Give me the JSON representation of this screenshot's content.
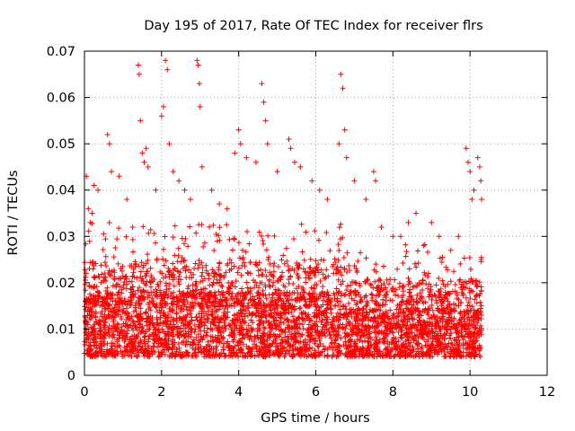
{
  "chart_data": {
    "type": "scatter",
    "title": "Day 195 of 2017, Rate Of TEC Index for receiver flrs",
    "xlabel": "GPS time / hours",
    "ylabel": "ROTI / TECUs",
    "xlim": [
      0,
      12
    ],
    "ylim": [
      0,
      0.07
    ],
    "x_ticks": [
      "0",
      "2",
      "4",
      "6",
      "8",
      "10",
      "12"
    ],
    "y_ticks": [
      "0",
      "0.01",
      "0.02",
      "0.03",
      "0.04",
      "0.05",
      "0.06",
      "0.07"
    ],
    "grid": true,
    "marker": "plus",
    "color": "#ff0000",
    "data_extent": {
      "x_start": 0.0,
      "x_end": 10.3
    },
    "summary": "Dense cloud of ROTI samples; bulk between 0.004 and 0.03 TECU/min, peaks up to ~0.068 near 2.1 h and 2.9 h",
    "series": [
      {
        "name": "flrs ROTI",
        "points": [
          [
            0.05,
            0.043
          ],
          [
            0.1,
            0.036
          ],
          [
            0.15,
            0.033
          ],
          [
            0.2,
            0.035
          ],
          [
            0.25,
            0.041
          ],
          [
            0.35,
            0.04
          ],
          [
            0.6,
            0.052
          ],
          [
            0.65,
            0.05
          ],
          [
            0.7,
            0.044
          ],
          [
            0.9,
            0.043
          ],
          [
            1.1,
            0.038
          ],
          [
            1.25,
            0.032
          ],
          [
            1.4,
            0.067
          ],
          [
            1.42,
            0.065
          ],
          [
            1.45,
            0.055
          ],
          [
            1.5,
            0.048
          ],
          [
            1.55,
            0.046
          ],
          [
            1.6,
            0.049
          ],
          [
            1.65,
            0.045
          ],
          [
            1.85,
            0.04
          ],
          [
            2.0,
            0.056
          ],
          [
            2.05,
            0.058
          ],
          [
            2.1,
            0.068
          ],
          [
            2.15,
            0.066
          ],
          [
            2.2,
            0.05
          ],
          [
            2.3,
            0.044
          ],
          [
            2.45,
            0.042
          ],
          [
            2.6,
            0.04
          ],
          [
            2.75,
            0.038
          ],
          [
            2.92,
            0.068
          ],
          [
            2.95,
            0.067
          ],
          [
            2.98,
            0.063
          ],
          [
            3.0,
            0.058
          ],
          [
            3.05,
            0.045
          ],
          [
            3.3,
            0.04
          ],
          [
            3.5,
            0.037
          ],
          [
            3.7,
            0.036
          ],
          [
            3.9,
            0.048
          ],
          [
            4.0,
            0.053
          ],
          [
            4.05,
            0.05
          ],
          [
            4.2,
            0.047
          ],
          [
            4.45,
            0.046
          ],
          [
            4.6,
            0.063
          ],
          [
            4.65,
            0.059
          ],
          [
            4.7,
            0.055
          ],
          [
            4.75,
            0.05
          ],
          [
            5.0,
            0.044
          ],
          [
            5.3,
            0.051
          ],
          [
            5.35,
            0.049
          ],
          [
            5.45,
            0.046
          ],
          [
            5.6,
            0.045
          ],
          [
            5.9,
            0.042
          ],
          [
            6.1,
            0.04
          ],
          [
            6.3,
            0.038
          ],
          [
            6.6,
            0.05
          ],
          [
            6.65,
            0.065
          ],
          [
            6.7,
            0.062
          ],
          [
            6.75,
            0.053
          ],
          [
            6.8,
            0.047
          ],
          [
            7.0,
            0.042
          ],
          [
            7.3,
            0.038
          ],
          [
            7.5,
            0.044
          ],
          [
            7.55,
            0.042
          ],
          [
            7.7,
            0.032
          ],
          [
            8.0,
            0.03
          ],
          [
            8.2,
            0.03
          ],
          [
            8.4,
            0.033
          ],
          [
            8.6,
            0.035
          ],
          [
            8.8,
            0.028
          ],
          [
            9.0,
            0.033
          ],
          [
            9.2,
            0.03
          ],
          [
            9.5,
            0.027
          ],
          [
            9.7,
            0.03
          ],
          [
            9.9,
            0.049
          ],
          [
            9.95,
            0.046
          ],
          [
            10.0,
            0.044
          ],
          [
            10.05,
            0.038
          ],
          [
            10.1,
            0.04
          ],
          [
            10.2,
            0.047
          ],
          [
            10.25,
            0.045
          ],
          [
            10.28,
            0.042
          ],
          [
            10.3,
            0.038
          ]
        ]
      }
    ]
  }
}
